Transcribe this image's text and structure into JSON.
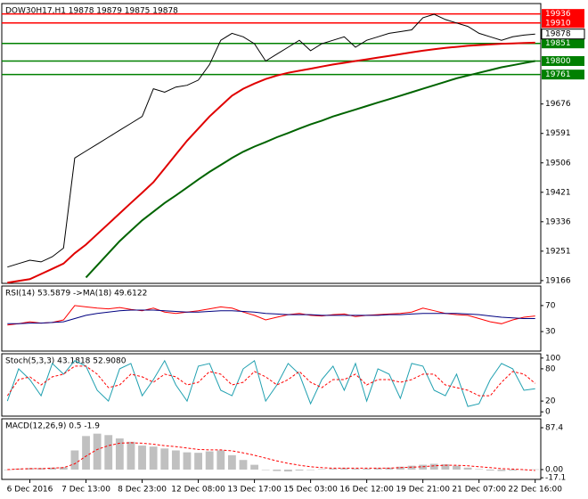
{
  "chart_data": [
    {
      "type": "line",
      "title": "DOW30H17,H1  19878 19879 19875 19878",
      "categories": [
        null,
        null,
        "6 Dec 2016",
        null,
        null,
        null,
        null,
        "7 Dec 13:00",
        null,
        null,
        null,
        null,
        "8 Dec 23:00",
        null,
        null,
        null,
        null,
        "12 Dec 08:00",
        null,
        null,
        null,
        null,
        "13 Dec 17:00",
        null,
        null,
        null,
        null,
        "15 Dec 03:00",
        null,
        null,
        null,
        null,
        "16 Dec 12:00",
        null,
        null,
        null,
        null,
        "19 Dec 21:00",
        null,
        null,
        null,
        null,
        "21 Dec 07:00",
        null,
        null,
        null,
        null,
        "22 Dec 16:00"
      ],
      "series": [
        {
          "color": "#000000",
          "values": [
            19205,
            19215,
            19225,
            19220,
            19235,
            19260,
            19520,
            19540,
            19560,
            19580,
            19600,
            19620,
            19640,
            19720,
            19710,
            19725,
            19730,
            19745,
            19790,
            19860,
            19880,
            19870,
            19850,
            19800,
            19820,
            19840,
            19860,
            19830,
            19850,
            19860,
            19870,
            19840,
            19860,
            19870,
            19880,
            19885,
            19890,
            19925,
            19935,
            19920,
            19910,
            19900,
            19880,
            19870,
            19860,
            19870,
            19875,
            19878
          ]
        },
        {
          "color": "#e00000",
          "values": [
            19160,
            19165,
            19170,
            19185,
            19200,
            19215,
            19245,
            19270,
            19300,
            19330,
            19360,
            19390,
            19420,
            19450,
            19490,
            19530,
            19570,
            19605,
            19640,
            19670,
            19700,
            19720,
            19735,
            19748,
            19758,
            19766,
            19772,
            19778,
            19784,
            19790,
            19795,
            19800,
            19805,
            19810,
            19815,
            19820,
            19825,
            19830,
            19834,
            19838,
            19841,
            19844,
            19846,
            19848,
            19850,
            19851,
            19852,
            19853
          ]
        },
        {
          "color": "#006400",
          "values": [
            null,
            null,
            null,
            null,
            null,
            null,
            null,
            19175,
            19210,
            19245,
            19280,
            19310,
            19340,
            19365,
            19390,
            19412,
            19435,
            19458,
            19480,
            19500,
            19520,
            19538,
            19553,
            19566,
            19580,
            19592,
            19605,
            19617,
            19628,
            19640,
            19650,
            19660,
            19670,
            19680,
            19690,
            19700,
            19710,
            19720,
            19730,
            19740,
            19750,
            19758,
            19766,
            19774,
            19782,
            19788,
            19794,
            19800
          ]
        }
      ],
      "levels": [
        {
          "value": 19936,
          "color": "#ff0000"
        },
        {
          "value": 19910,
          "color": "#ff0000"
        },
        {
          "value": 19851,
          "color": "#008000"
        },
        {
          "value": 19800,
          "color": "#008000"
        },
        {
          "value": 19761,
          "color": "#008000"
        }
      ],
      "last_price": 19878,
      "ylim": [
        19158,
        19966
      ],
      "yticks": [
        19676,
        19591,
        19506,
        19421,
        19336,
        19251,
        19166
      ]
    },
    {
      "type": "line",
      "title": "RSI(14) 53.5879 ->MA(18) 49.6122",
      "series": [
        {
          "color": "#ff0000",
          "values": [
            40,
            42,
            45,
            43,
            44,
            48,
            70,
            68,
            66,
            65,
            67,
            64,
            62,
            66,
            60,
            58,
            60,
            62,
            65,
            68,
            66,
            60,
            55,
            48,
            52,
            56,
            58,
            55,
            54,
            56,
            57,
            53,
            55,
            56,
            57,
            58,
            60,
            66,
            62,
            58,
            56,
            55,
            50,
            45,
            42,
            48,
            52,
            54
          ]
        },
        {
          "color": "#000080",
          "values": [
            42,
            42,
            43,
            43,
            44,
            45,
            50,
            55,
            58,
            60,
            62,
            63,
            63,
            63,
            62,
            61,
            60,
            60,
            61,
            62,
            62,
            61,
            60,
            58,
            57,
            56,
            56,
            56,
            55,
            55,
            55,
            55,
            55,
            55,
            56,
            56,
            57,
            58,
            58,
            58,
            58,
            57,
            56,
            54,
            52,
            51,
            50,
            50
          ]
        }
      ],
      "ylim": [
        0,
        100
      ],
      "yticks": [
        70,
        30
      ]
    },
    {
      "type": "line",
      "title": "Stoch(5,3,3) 43.1818 52.9080",
      "series": [
        {
          "color": "#20a0b0",
          "values": [
            20,
            80,
            60,
            30,
            90,
            70,
            95,
            85,
            40,
            20,
            80,
            90,
            30,
            60,
            95,
            50,
            20,
            85,
            90,
            40,
            30,
            80,
            95,
            20,
            50,
            90,
            70,
            15,
            60,
            85,
            40,
            90,
            20,
            80,
            70,
            25,
            90,
            85,
            40,
            30,
            70,
            10,
            15,
            60,
            90,
            80,
            40,
            43
          ]
        },
        {
          "color": "#ff0000",
          "dashed": true,
          "values": [
            30,
            60,
            65,
            50,
            65,
            70,
            85,
            85,
            70,
            45,
            50,
            70,
            65,
            55,
            70,
            65,
            50,
            55,
            75,
            70,
            50,
            55,
            75,
            65,
            50,
            60,
            75,
            55,
            45,
            60,
            60,
            70,
            50,
            60,
            60,
            55,
            60,
            70,
            70,
            50,
            45,
            40,
            30,
            30,
            55,
            75,
            70,
            53
          ]
        }
      ],
      "ylim": [
        -8,
        108
      ],
      "yticks": [
        100,
        80,
        20,
        0
      ]
    },
    {
      "type": "bar",
      "title": "MACD(12,26,9) 0.5 -1.9",
      "color": "#c0c0c0",
      "values": [
        0,
        2,
        3,
        3,
        4,
        5,
        40,
        70,
        75,
        72,
        65,
        58,
        50,
        48,
        44,
        40,
        36,
        35,
        38,
        40,
        30,
        20,
        10,
        0,
        -3,
        -4,
        -2,
        0,
        1,
        2,
        3,
        2,
        2,
        3,
        4,
        6,
        8,
        10,
        12,
        11,
        8,
        4,
        1,
        -2,
        -3,
        -2,
        0,
        0.5
      ],
      "series": [
        {
          "color": "#ff0000",
          "dashed": true,
          "values": [
            0,
            1,
            2,
            2,
            3,
            4,
            12,
            28,
            42,
            50,
            55,
            56,
            55,
            53,
            50,
            48,
            45,
            42,
            41,
            41,
            39,
            35,
            30,
            24,
            18,
            13,
            9,
            6,
            4,
            3,
            3,
            3,
            3,
            3,
            3,
            4,
            5,
            6,
            8,
            9,
            9,
            8,
            6,
            4,
            2,
            1,
            0,
            -1.9
          ]
        }
      ],
      "ylim": [
        -20.5,
        106
      ],
      "yticks": [
        87.4,
        {
          "value": 0,
          "label": "0.00"
        },
        -17.1
      ]
    }
  ]
}
